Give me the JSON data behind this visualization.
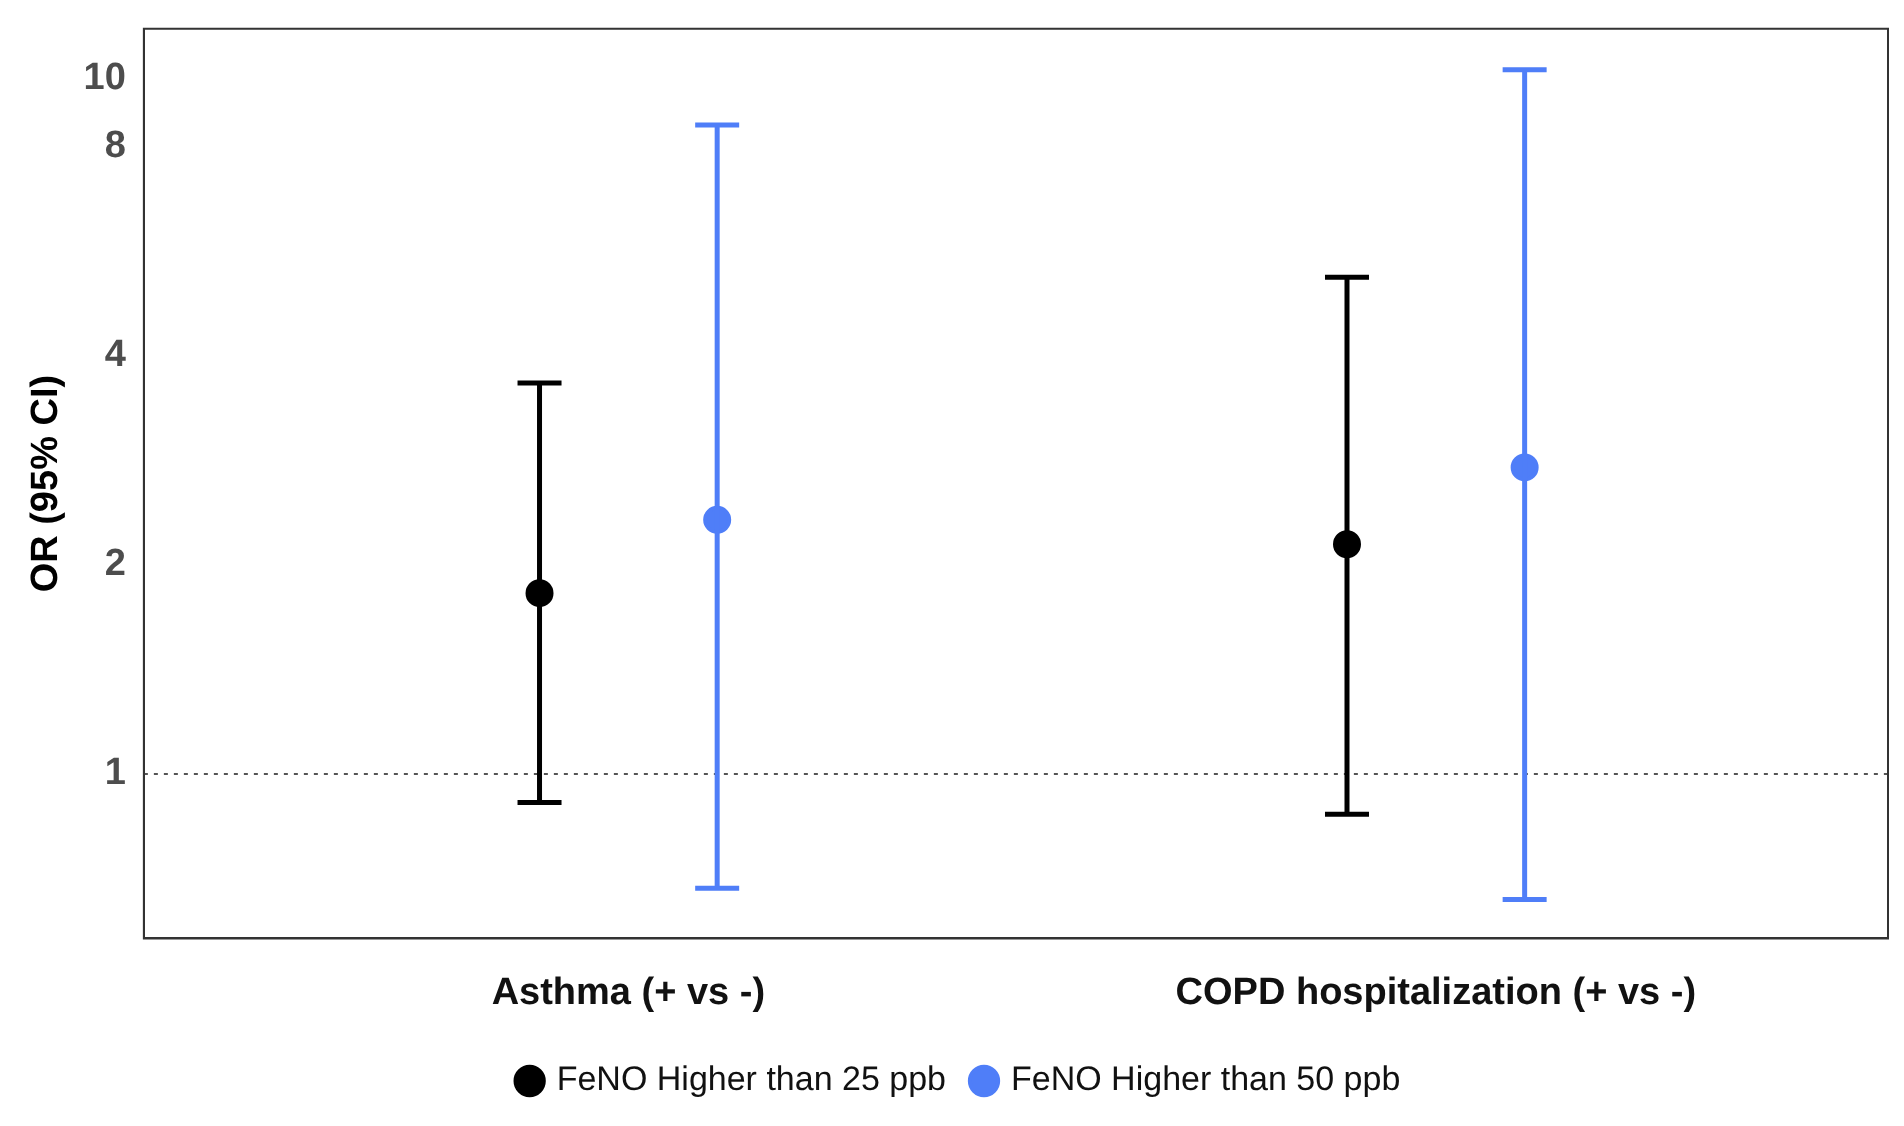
{
  "chart_data": {
    "type": "scatter",
    "ylabel": "OR (95% CI)",
    "categories": [
      "Asthma (+ vs -)",
      "COPD hospitalization (+ vs -)"
    ],
    "series": [
      {
        "name": "FeNO Higher than 25 ppb",
        "color": "#000000",
        "values": [
          1.82,
          2.14
        ],
        "errors": [
          [
            0.91,
            3.65
          ],
          [
            0.875,
            5.18
          ]
        ]
      },
      {
        "name": "FeNO Higher than 50 ppb",
        "color": "#4f7ef8",
        "values": [
          2.32,
          2.76
        ],
        "errors": [
          [
            0.685,
            8.58
          ],
          [
            0.66,
            10.3
          ]
        ]
      }
    ],
    "log": true,
    "ylim": [
      0.58,
      11.8
    ],
    "yticks": [
      1,
      2,
      4,
      8,
      10
    ],
    "ref_lines": [
      {
        "axis": "y",
        "value": 1,
        "color": "#555555",
        "line_style": "dotted"
      }
    ],
    "grid": false,
    "legend": "bottom",
    "marker": "circle"
  }
}
